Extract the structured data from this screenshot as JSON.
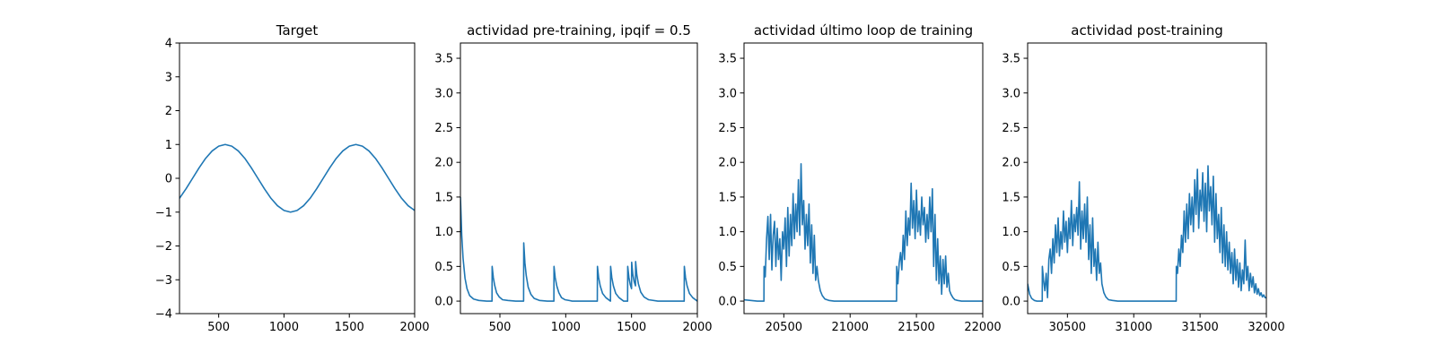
{
  "chart_data": [
    {
      "type": "line",
      "title": "Target",
      "xlim": [
        200,
        2000
      ],
      "ylim": [
        -4,
        4
      ],
      "xticks": [
        500,
        1000,
        1500,
        2000
      ],
      "xtick_labels": [
        "500",
        "1000",
        "1500",
        "2000"
      ],
      "yticks": [
        -4,
        -3,
        -2,
        -1,
        0,
        1,
        2,
        3,
        4
      ],
      "ytick_labels": [
        "−4",
        "−3",
        "−2",
        "−1",
        "0",
        "1",
        "2",
        "3",
        "4"
      ],
      "grid": false,
      "series": [
        {
          "color": "#1f77b4",
          "x": [
            200,
            250,
            300,
            350,
            400,
            450,
            500,
            550,
            600,
            650,
            700,
            750,
            800,
            850,
            900,
            950,
            1000,
            1050,
            1100,
            1150,
            1200,
            1250,
            1300,
            1350,
            1400,
            1450,
            1500,
            1550,
            1600,
            1650,
            1700,
            1750,
            1800,
            1850,
            1900,
            1950,
            2000
          ],
          "y": [
            -0.59,
            -0.31,
            0.0,
            0.31,
            0.59,
            0.81,
            0.95,
            1.0,
            0.95,
            0.81,
            0.59,
            0.31,
            0.0,
            -0.31,
            -0.59,
            -0.81,
            -0.95,
            -1.0,
            -0.95,
            -0.81,
            -0.59,
            -0.31,
            0.0,
            0.31,
            0.59,
            0.81,
            0.95,
            1.0,
            0.95,
            0.81,
            0.59,
            0.31,
            0.0,
            -0.31,
            -0.59,
            -0.81,
            -0.95
          ]
        }
      ]
    },
    {
      "type": "line",
      "title": "actividad pre-training, ipqif = 0.5",
      "xlim": [
        200,
        2000
      ],
      "ylim": [
        -0.18,
        3.72
      ],
      "xticks": [
        500,
        1000,
        1500,
        2000
      ],
      "xtick_labels": [
        "500",
        "1000",
        "1500",
        "2000"
      ],
      "yticks": [
        0,
        0.5,
        1.0,
        1.5,
        2.0,
        2.5,
        3.0,
        3.5
      ],
      "ytick_labels": [
        "0.0",
        "0.5",
        "1.0",
        "1.5",
        "2.0",
        "2.5",
        "3.0",
        "3.5"
      ],
      "grid": false,
      "series": [
        {
          "color": "#1f77b4",
          "x": [
            200,
            210,
            220,
            235,
            250,
            270,
            300,
            340,
            400,
            440,
            441,
            450,
            460,
            475,
            495,
            520,
            560,
            620,
            680,
            681,
            690,
            700,
            715,
            735,
            760,
            800,
            860,
            910,
            911,
            920,
            932,
            948,
            968,
            995,
            1050,
            1150,
            1240,
            1241,
            1250,
            1262,
            1280,
            1305,
            1340,
            1341,
            1350,
            1362,
            1380,
            1405,
            1440,
            1470,
            1471,
            1480,
            1490,
            1500,
            1501,
            1510,
            1520,
            1530,
            1531,
            1540,
            1552,
            1570,
            1595,
            1630,
            1700,
            1800,
            1900,
            1901,
            1910,
            1922,
            1940,
            1965,
            2000
          ],
          "y": [
            1.5,
            0.95,
            0.62,
            0.33,
            0.18,
            0.08,
            0.03,
            0.01,
            0.0,
            0.0,
            0.5,
            0.34,
            0.23,
            0.12,
            0.06,
            0.02,
            0.01,
            0.0,
            0.0,
            0.84,
            0.55,
            0.37,
            0.2,
            0.1,
            0.04,
            0.01,
            0.0,
            0.0,
            0.5,
            0.34,
            0.22,
            0.12,
            0.05,
            0.02,
            0.0,
            0.0,
            0.0,
            0.5,
            0.34,
            0.22,
            0.11,
            0.05,
            0.0,
            0.5,
            0.34,
            0.22,
            0.11,
            0.05,
            0.0,
            0.0,
            0.5,
            0.34,
            0.24,
            0.18,
            0.56,
            0.38,
            0.28,
            0.22,
            0.57,
            0.38,
            0.25,
            0.13,
            0.06,
            0.02,
            0.0,
            0.0,
            0.0,
            0.5,
            0.34,
            0.22,
            0.11,
            0.05,
            0.0
          ]
        }
      ]
    },
    {
      "type": "line",
      "title": "actividad último loop de training",
      "xlim": [
        20200,
        22000
      ],
      "ylim": [
        -0.18,
        3.72
      ],
      "xticks": [
        20500,
        21000,
        21500,
        22000
      ],
      "xtick_labels": [
        "20500",
        "21000",
        "21500",
        "22000"
      ],
      "yticks": [
        0,
        0.5,
        1.0,
        1.5,
        2.0,
        2.5,
        3.0,
        3.5
      ],
      "ytick_labels": [
        "0.0",
        "0.5",
        "1.0",
        "1.5",
        "2.0",
        "2.5",
        "3.0",
        "3.5"
      ],
      "grid": false,
      "series": [
        {
          "color": "#1f77b4",
          "x": [
            20200,
            20250,
            20300,
            20350,
            20351,
            20360,
            20370,
            20380,
            20390,
            20400,
            20410,
            20420,
            20430,
            20440,
            20450,
            20460,
            20470,
            20480,
            20490,
            20500,
            20510,
            20520,
            20530,
            20540,
            20550,
            20560,
            20570,
            20580,
            20590,
            20600,
            20610,
            20620,
            20630,
            20640,
            20650,
            20660,
            20670,
            20680,
            20690,
            20700,
            20710,
            20720,
            20730,
            20740,
            20750,
            20760,
            20775,
            20790,
            20810,
            20840,
            20880,
            20950,
            21100,
            21250,
            21350,
            21351,
            21360,
            21370,
            21380,
            21390,
            21400,
            21410,
            21420,
            21430,
            21440,
            21450,
            21460,
            21470,
            21480,
            21490,
            21500,
            21510,
            21520,
            21530,
            21540,
            21550,
            21560,
            21570,
            21580,
            21590,
            21600,
            21610,
            21620,
            21630,
            21640,
            21650,
            21660,
            21670,
            21680,
            21690,
            21700,
            21710,
            21720,
            21730,
            21740,
            21750,
            21760,
            21775,
            21790,
            21810,
            21840,
            21880,
            21950,
            22000
          ],
          "y": [
            0.02,
            0.01,
            0.0,
            0.0,
            0.5,
            0.35,
            0.9,
            1.22,
            0.6,
            1.25,
            0.45,
            0.95,
            1.15,
            0.5,
            1.05,
            0.6,
            0.9,
            0.3,
            1.0,
            0.75,
            1.2,
            0.5,
            1.35,
            0.65,
            1.25,
            0.8,
            1.55,
            0.9,
            1.4,
            1.0,
            1.75,
            0.95,
            1.98,
            1.1,
            1.45,
            0.75,
            1.25,
            0.8,
            1.4,
            0.55,
            1.1,
            0.4,
            0.95,
            0.3,
            0.5,
            0.3,
            0.15,
            0.08,
            0.03,
            0.01,
            0.0,
            0.0,
            0.0,
            0.0,
            0.0,
            0.5,
            0.25,
            0.55,
            0.7,
            0.45,
            0.95,
            0.6,
            1.3,
            0.8,
            1.2,
            0.95,
            1.7,
            1.05,
            1.45,
            0.9,
            1.6,
            1.0,
            1.3,
            0.95,
            1.5,
            1.1,
            1.35,
            0.85,
            1.25,
            0.9,
            1.5,
            1.0,
            1.62,
            0.5,
            1.25,
            0.3,
            0.9,
            0.25,
            0.65,
            0.1,
            0.6,
            0.25,
            0.65,
            0.2,
            0.4,
            0.15,
            0.1,
            0.05,
            0.02,
            0.01,
            0.0,
            0.0,
            0.0,
            0.0
          ]
        }
      ]
    },
    {
      "type": "line",
      "title": "actividad post-training",
      "xlim": [
        30200,
        32000
      ],
      "ylim": [
        -0.18,
        3.72
      ],
      "xticks": [
        30500,
        31000,
        31500,
        32000
      ],
      "xtick_labels": [
        "30500",
        "31000",
        "31500",
        "32000"
      ],
      "yticks": [
        0,
        0.5,
        1.0,
        1.5,
        2.0,
        2.5,
        3.0,
        3.5
      ],
      "ytick_labels": [
        "0.0",
        "0.5",
        "1.0",
        "1.5",
        "2.0",
        "2.5",
        "3.0",
        "3.5"
      ],
      "grid": false,
      "series": [
        {
          "color": "#1f77b4",
          "x": [
            30200,
            30215,
            30230,
            30250,
            30270,
            30290,
            30310,
            30311,
            30320,
            30330,
            30340,
            30350,
            30360,
            30370,
            30380,
            30390,
            30400,
            30410,
            30420,
            30430,
            30440,
            30450,
            30460,
            30470,
            30480,
            30490,
            30500,
            30510,
            30520,
            30530,
            30540,
            30550,
            30560,
            30570,
            30580,
            30590,
            30600,
            30610,
            30620,
            30630,
            30640,
            30650,
            30660,
            30670,
            30680,
            30690,
            30700,
            30710,
            30720,
            30730,
            30740,
            30750,
            30760,
            30775,
            30790,
            30810,
            30840,
            30880,
            30950,
            31100,
            31250,
            31320,
            31321,
            31330,
            31340,
            31350,
            31360,
            31370,
            31380,
            31390,
            31400,
            31410,
            31420,
            31430,
            31440,
            31450,
            31460,
            31470,
            31480,
            31490,
            31500,
            31510,
            31520,
            31530,
            31540,
            31550,
            31560,
            31570,
            31580,
            31590,
            31600,
            31610,
            31620,
            31630,
            31640,
            31650,
            31660,
            31670,
            31680,
            31690,
            31700,
            31710,
            31720,
            31730,
            31740,
            31750,
            31760,
            31770,
            31780,
            31790,
            31800,
            31810,
            31820,
            31830,
            31840,
            31850,
            31860,
            31870,
            31880,
            31890,
            31900,
            31910,
            31920,
            31930,
            31940,
            31950,
            31960,
            31970,
            31980,
            31990,
            32000
          ],
          "y": [
            0.25,
            0.1,
            0.04,
            0.01,
            0.0,
            0.0,
            0.0,
            0.5,
            0.3,
            0.15,
            0.4,
            0.05,
            0.6,
            0.75,
            0.4,
            0.9,
            0.55,
            1.1,
            0.7,
            1.2,
            0.65,
            1.0,
            0.75,
            1.3,
            0.85,
            1.15,
            0.7,
            1.2,
            0.9,
            1.45,
            0.8,
            1.25,
            1.0,
            1.35,
            0.95,
            1.72,
            0.75,
            1.3,
            0.9,
            1.4,
            0.85,
            1.5,
            0.6,
            1.1,
            0.4,
            1.2,
            0.5,
            0.75,
            0.3,
            0.85,
            0.4,
            0.55,
            0.25,
            0.12,
            0.06,
            0.02,
            0.01,
            0.0,
            0.0,
            0.0,
            0.0,
            0.0,
            0.5,
            0.4,
            0.75,
            0.5,
            0.95,
            0.7,
            1.3,
            0.85,
            1.4,
            0.9,
            1.55,
            1.1,
            1.5,
            1.0,
            1.75,
            1.25,
            1.9,
            1.05,
            1.6,
            1.3,
            1.85,
            1.15,
            1.7,
            1.0,
            1.95,
            1.3,
            1.65,
            1.1,
            1.8,
            0.85,
            1.55,
            0.9,
            1.25,
            0.7,
            1.35,
            0.55,
            1.1,
            0.5,
            1.0,
            0.45,
            0.85,
            0.4,
            0.7,
            0.25,
            0.75,
            0.3,
            0.6,
            0.2,
            0.55,
            0.15,
            0.45,
            0.25,
            0.88,
            0.3,
            0.5,
            0.15,
            0.4,
            0.2,
            0.35,
            0.12,
            0.25,
            0.1,
            0.18,
            0.08,
            0.12,
            0.06,
            0.09,
            0.05,
            0.05
          ]
        }
      ]
    }
  ]
}
